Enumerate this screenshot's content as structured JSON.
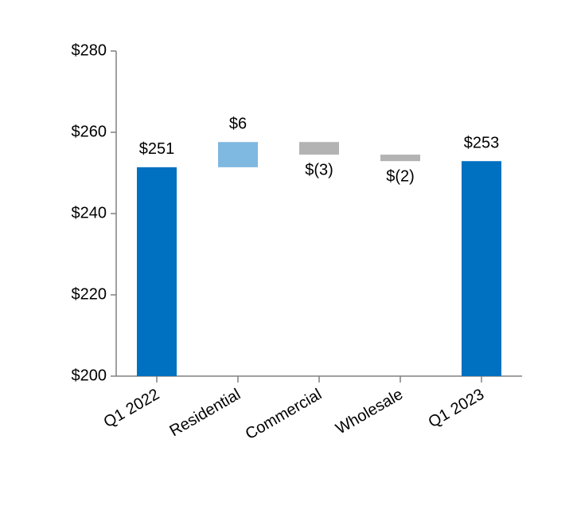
{
  "chart_data": {
    "type": "waterfall",
    "categories": [
      "Q1 2022",
      "Residential",
      "Commercial",
      "Wholesale",
      "Q1 2023"
    ],
    "values": [
      251.4,
      6.2,
      -3.1,
      -1.6,
      252.9
    ],
    "value_labels": [
      "$251",
      "$6",
      "$(3)",
      "$(2)",
      "$253"
    ],
    "colors": [
      "#0070c0",
      "#7fb8e0",
      "#b3b3b3",
      "#b3b3b3",
      "#0070c0"
    ],
    "ylim": [
      200,
      280
    ],
    "yticks": [
      {
        "value": 200,
        "label": "$200"
      },
      {
        "value": 220,
        "label": "$220"
      },
      {
        "value": 240,
        "label": "$240"
      },
      {
        "value": 260,
        "label": "$260"
      },
      {
        "value": 280,
        "label": "$280"
      }
    ]
  }
}
